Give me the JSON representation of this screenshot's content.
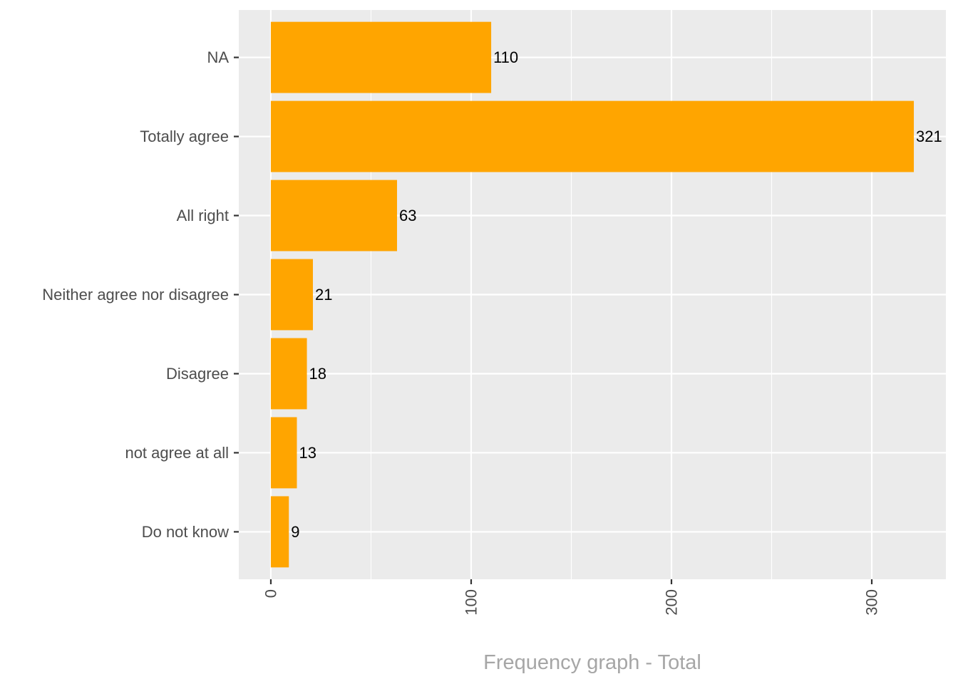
{
  "chart_data": {
    "type": "bar",
    "orientation": "horizontal",
    "categories": [
      "NA",
      "Totally agree",
      "All right",
      "Neither agree nor disagree",
      "Disagree",
      "not agree at all",
      "Do not know"
    ],
    "values": [
      110,
      321,
      63,
      21,
      18,
      13,
      9
    ],
    "data_labels": [
      "110",
      "321",
      "63",
      "21",
      "18",
      "13",
      "9"
    ],
    "xlabel": "Frequency graph - Total",
    "ylabel": "",
    "xlim": [
      -16,
      337
    ],
    "x_ticks": [
      0,
      100,
      200,
      300
    ],
    "x_tick_labels": [
      "0",
      "100",
      "200",
      "300"
    ],
    "x_minor_ticks": [
      50,
      150,
      250
    ],
    "x_tick_label_rotation": "vertical",
    "grid": true,
    "legend": "none",
    "bar_color": "#ffa500",
    "panel_background": "#ebebeb",
    "grid_color": "#ffffff"
  }
}
